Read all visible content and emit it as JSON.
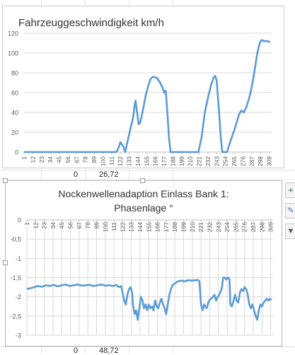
{
  "cells": {
    "row1_a": "0",
    "row1_b": "26,72",
    "row2_a": "0",
    "row2_b": "48,72"
  },
  "toolbar": {
    "add_icon": "plus-icon",
    "style_icon": "brush-icon",
    "filter_icon": "filter-icon"
  },
  "colors": {
    "series": "#5b9bd5",
    "grid": "#d9d9d9",
    "axis_text": "#595959"
  },
  "chart_data": [
    {
      "type": "line",
      "title": "Fahrzeuggeschwindigkeit km/h",
      "xlabel": "",
      "ylabel": "",
      "ylim": [
        0,
        120
      ],
      "yticks": [
        0,
        20,
        40,
        60,
        80,
        100,
        120
      ],
      "xticks": [
        "1",
        "12",
        "23",
        "34",
        "45",
        "56",
        "67",
        "78",
        "89",
        "100",
        "111",
        "122",
        "133",
        "144",
        "155",
        "166",
        "177",
        "188",
        "199",
        "210",
        "221",
        "232",
        "243",
        "254",
        "265",
        "276",
        "287",
        "298",
        "309"
      ],
      "xlim": [
        1,
        312
      ],
      "grid": true,
      "series": [
        {
          "points": [
            [
              1,
              0
            ],
            [
              110,
              0
            ],
            [
              117,
              0
            ],
            [
              120,
              5
            ],
            [
              122,
              10
            ],
            [
              126,
              5
            ],
            [
              128,
              0
            ],
            [
              133,
              18
            ],
            [
              135,
              25
            ],
            [
              138,
              35
            ],
            [
              140,
              48
            ],
            [
              141,
              52
            ],
            [
              143,
              40
            ],
            [
              145,
              28
            ],
            [
              147,
              30
            ],
            [
              151,
              45
            ],
            [
              154,
              58
            ],
            [
              157,
              67
            ],
            [
              160,
              74
            ],
            [
              163,
              76
            ],
            [
              168,
              75
            ],
            [
              172,
              70
            ],
            [
              175,
              65
            ],
            [
              177,
              60
            ],
            [
              179,
              62
            ],
            [
              181,
              40
            ],
            [
              183,
              15
            ],
            [
              185,
              0
            ],
            [
              220,
              0
            ],
            [
              224,
              15
            ],
            [
              228,
              40
            ],
            [
              232,
              55
            ],
            [
              236,
              68
            ],
            [
              239,
              75
            ],
            [
              241,
              77
            ],
            [
              243,
              72
            ],
            [
              246,
              40
            ],
            [
              248,
              15
            ],
            [
              250,
              0
            ],
            [
              256,
              0
            ],
            [
              259,
              8
            ],
            [
              262,
              15
            ],
            [
              265,
              22
            ],
            [
              268,
              30
            ],
            [
              271,
              38
            ],
            [
              274,
              42
            ],
            [
              277,
              40
            ],
            [
              280,
              45
            ],
            [
              284,
              55
            ],
            [
              288,
              70
            ],
            [
              291,
              85
            ],
            [
              294,
              100
            ],
            [
              297,
              110
            ],
            [
              299,
              113
            ],
            [
              303,
              112
            ],
            [
              307,
              112
            ],
            [
              310,
              111
            ]
          ]
        }
      ]
    },
    {
      "type": "line",
      "title": "Nockenwellenadaption Einlass Bank 1:\nPhasenlage °",
      "xlabel": "",
      "ylabel": "",
      "ylim": [
        -3,
        0
      ],
      "yticks": [
        "0",
        "-0,5",
        "-1",
        "-1,5",
        "-2",
        "-2,5",
        "-3"
      ],
      "ytick_values": [
        0,
        -0.5,
        -1,
        -1.5,
        -2,
        -2.5,
        -3
      ],
      "xticks": [
        "1",
        "12",
        "23",
        "34",
        "45",
        "56",
        "67",
        "78",
        "89",
        "100",
        "111",
        "122",
        "133",
        "144",
        "155",
        "166",
        "177",
        "188",
        "199",
        "210",
        "221",
        "232",
        "243",
        "254",
        "265",
        "276",
        "287",
        "298",
        "309"
      ],
      "xlim": [
        1,
        312
      ],
      "grid": true,
      "series": [
        {
          "points": [
            [
              1,
              -1.8
            ],
            [
              5,
              -1.78
            ],
            [
              10,
              -1.75
            ],
            [
              15,
              -1.72
            ],
            [
              20,
              -1.74
            ],
            [
              25,
              -1.7
            ],
            [
              30,
              -1.72
            ],
            [
              35,
              -1.69
            ],
            [
              40,
              -1.73
            ],
            [
              45,
              -1.7
            ],
            [
              50,
              -1.68
            ],
            [
              55,
              -1.72
            ],
            [
              60,
              -1.7
            ],
            [
              65,
              -1.68
            ],
            [
              70,
              -1.71
            ],
            [
              75,
              -1.7
            ],
            [
              80,
              -1.69
            ],
            [
              85,
              -1.72
            ],
            [
              90,
              -1.7
            ],
            [
              95,
              -1.68
            ],
            [
              100,
              -1.71
            ],
            [
              105,
              -1.7
            ],
            [
              110,
              -1.72
            ],
            [
              114,
              -1.69
            ],
            [
              117,
              -1.75
            ],
            [
              120,
              -1.72
            ],
            [
              122,
              -1.9
            ],
            [
              124,
              -2.1
            ],
            [
              126,
              -2.2
            ],
            [
              128,
              -1.95
            ],
            [
              130,
              -1.8
            ],
            [
              132,
              -1.75
            ],
            [
              134,
              -1.9
            ],
            [
              135,
              -2.2
            ],
            [
              137,
              -2.45
            ],
            [
              139,
              -2.35
            ],
            [
              141,
              -2.6
            ],
            [
              143,
              -2.3
            ],
            [
              145,
              -2.0
            ],
            [
              147,
              -2.1
            ],
            [
              149,
              -2.3
            ],
            [
              151,
              -2.2
            ],
            [
              153,
              -2.35
            ],
            [
              155,
              -2.2
            ],
            [
              157,
              -2.3
            ],
            [
              159,
              -2.25
            ],
            [
              161,
              -2.35
            ],
            [
              163,
              -2.1
            ],
            [
              165,
              -2.25
            ],
            [
              167,
              -2.3
            ],
            [
              169,
              -2.15
            ],
            [
              171,
              -2.05
            ],
            [
              173,
              -2.2
            ],
            [
              175,
              -2.3
            ],
            [
              177,
              -2.45
            ],
            [
              179,
              -2.2
            ],
            [
              181,
              -1.95
            ],
            [
              183,
              -1.8
            ],
            [
              185,
              -1.7
            ],
            [
              188,
              -1.65
            ],
            [
              192,
              -1.6
            ],
            [
              196,
              -1.58
            ],
            [
              200,
              -1.6
            ],
            [
              205,
              -1.57
            ],
            [
              210,
              -1.58
            ],
            [
              214,
              -1.57
            ],
            [
              217,
              -1.56
            ],
            [
              219,
              -1.6
            ],
            [
              221,
              -2.2
            ],
            [
              223,
              -2.35
            ],
            [
              225,
              -2.2
            ],
            [
              228,
              -2.3
            ],
            [
              231,
              -2.1
            ],
            [
              234,
              -2.05
            ],
            [
              236,
              -2.0
            ],
            [
              238,
              -1.95
            ],
            [
              240,
              -2.1
            ],
            [
              242,
              -2.0
            ],
            [
              244,
              -1.95
            ],
            [
              247,
              -1.8
            ],
            [
              249,
              -1.5
            ],
            [
              251,
              -1.5
            ],
            [
              253,
              -1.55
            ],
            [
              255,
              -1.5
            ],
            [
              257,
              -1.55
            ],
            [
              258,
              -2.2
            ],
            [
              260,
              -2.25
            ],
            [
              262,
              -2.1
            ],
            [
              264,
              -1.95
            ],
            [
              266,
              -2.1
            ],
            [
              268,
              -2.15
            ],
            [
              270,
              -1.9
            ],
            [
              272,
              -1.8
            ],
            [
              274,
              -1.85
            ],
            [
              276,
              -1.75
            ],
            [
              278,
              -1.8
            ],
            [
              280,
              -1.95
            ],
            [
              282,
              -2.2
            ],
            [
              284,
              -2.3
            ],
            [
              286,
              -2.2
            ],
            [
              288,
              -2.35
            ],
            [
              290,
              -2.5
            ],
            [
              292,
              -2.6
            ],
            [
              294,
              -2.35
            ],
            [
              296,
              -2.2
            ],
            [
              298,
              -2.25
            ],
            [
              300,
              -2.15
            ],
            [
              302,
              -2.1
            ],
            [
              304,
              -2.05
            ],
            [
              306,
              -2.1
            ],
            [
              308,
              -2.05
            ],
            [
              310,
              -2.08
            ]
          ]
        }
      ]
    }
  ]
}
